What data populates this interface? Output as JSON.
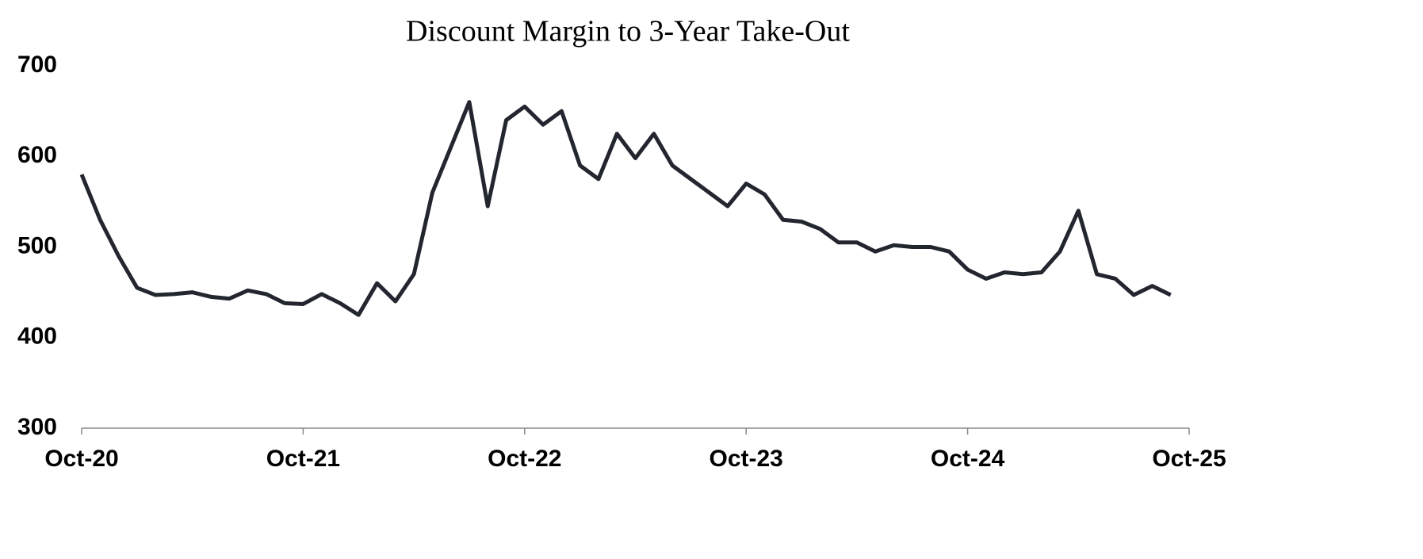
{
  "chart_data": {
    "type": "line",
    "title": "Discount Margin to 3-Year Take-Out",
    "x": [
      "2020-10",
      "2020-11",
      "2020-12",
      "2021-01",
      "2021-02",
      "2021-03",
      "2021-04",
      "2021-05",
      "2021-06",
      "2021-07",
      "2021-08",
      "2021-09",
      "2021-10",
      "2021-11",
      "2021-12",
      "2022-01",
      "2022-02",
      "2022-03",
      "2022-04",
      "2022-05",
      "2022-06",
      "2022-07",
      "2022-08",
      "2022-09",
      "2022-10",
      "2022-11",
      "2022-12",
      "2023-01",
      "2023-02",
      "2023-03",
      "2023-04",
      "2023-05",
      "2023-06",
      "2023-07",
      "2023-08",
      "2023-09",
      "2023-10",
      "2023-11",
      "2023-12",
      "2024-01",
      "2024-02",
      "2024-03",
      "2024-04",
      "2024-05",
      "2024-06",
      "2024-07",
      "2024-08",
      "2024-09",
      "2024-10",
      "2024-11",
      "2024-12",
      "2025-01",
      "2025-02",
      "2025-03",
      "2025-04",
      "2025-05",
      "2025-06",
      "2025-07",
      "2025-08",
      "2025-09"
    ],
    "series": [
      {
        "name": "Discount Margin",
        "color": "#23262f",
        "values": [
          580,
          530,
          490,
          455,
          447,
          448,
          450,
          445,
          443,
          452,
          448,
          438,
          437,
          448,
          438,
          425,
          460,
          440,
          470,
          560,
          610,
          660,
          545,
          640,
          655,
          635,
          650,
          590,
          575,
          625,
          598,
          625,
          590,
          575,
          560,
          545,
          570,
          558,
          530,
          528,
          520,
          505,
          505,
          495,
          502,
          500,
          500,
          495,
          475,
          465,
          472,
          470,
          472,
          495,
          540,
          470,
          465,
          447,
          457,
          447
        ]
      }
    ],
    "xlim": [
      "2020-10",
      "2025-10"
    ],
    "xticks": [
      {
        "value": "2020-10",
        "label": "Oct-20"
      },
      {
        "value": "2021-10",
        "label": "Oct-21"
      },
      {
        "value": "2022-10",
        "label": "Oct-22"
      },
      {
        "value": "2023-10",
        "label": "Oct-23"
      },
      {
        "value": "2024-10",
        "label": "Oct-24"
      },
      {
        "value": "2025-10",
        "label": "Oct-25"
      }
    ],
    "ylim": [
      300,
      700
    ],
    "yticks": [
      300,
      400,
      500,
      600,
      700
    ]
  }
}
